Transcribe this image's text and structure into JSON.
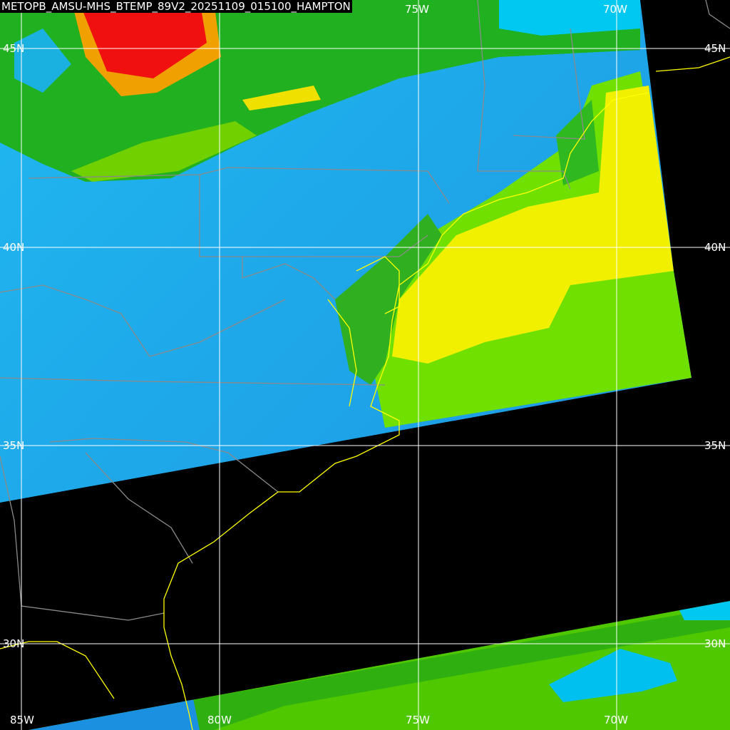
{
  "title": "METOPB_AMSU-MHS_BTEMP_89V2_20251109_015100_HAMPTON",
  "longitude_labels": [
    "85W",
    "80W",
    "75W",
    "70W"
  ],
  "latitude_labels": [
    "45N",
    "40N",
    "35N",
    "30N"
  ],
  "colors": {
    "background": "#000000",
    "cold_blue": "#1ea0f0",
    "cyan": "#00c8f0",
    "green": "#20b000",
    "light_green": "#70e000",
    "yellow": "#f0f000",
    "orange": "#f0a000",
    "red": "#f01010",
    "coastline": "#ffff00",
    "borders": "#888888",
    "gridlines": "#ffffff"
  }
}
